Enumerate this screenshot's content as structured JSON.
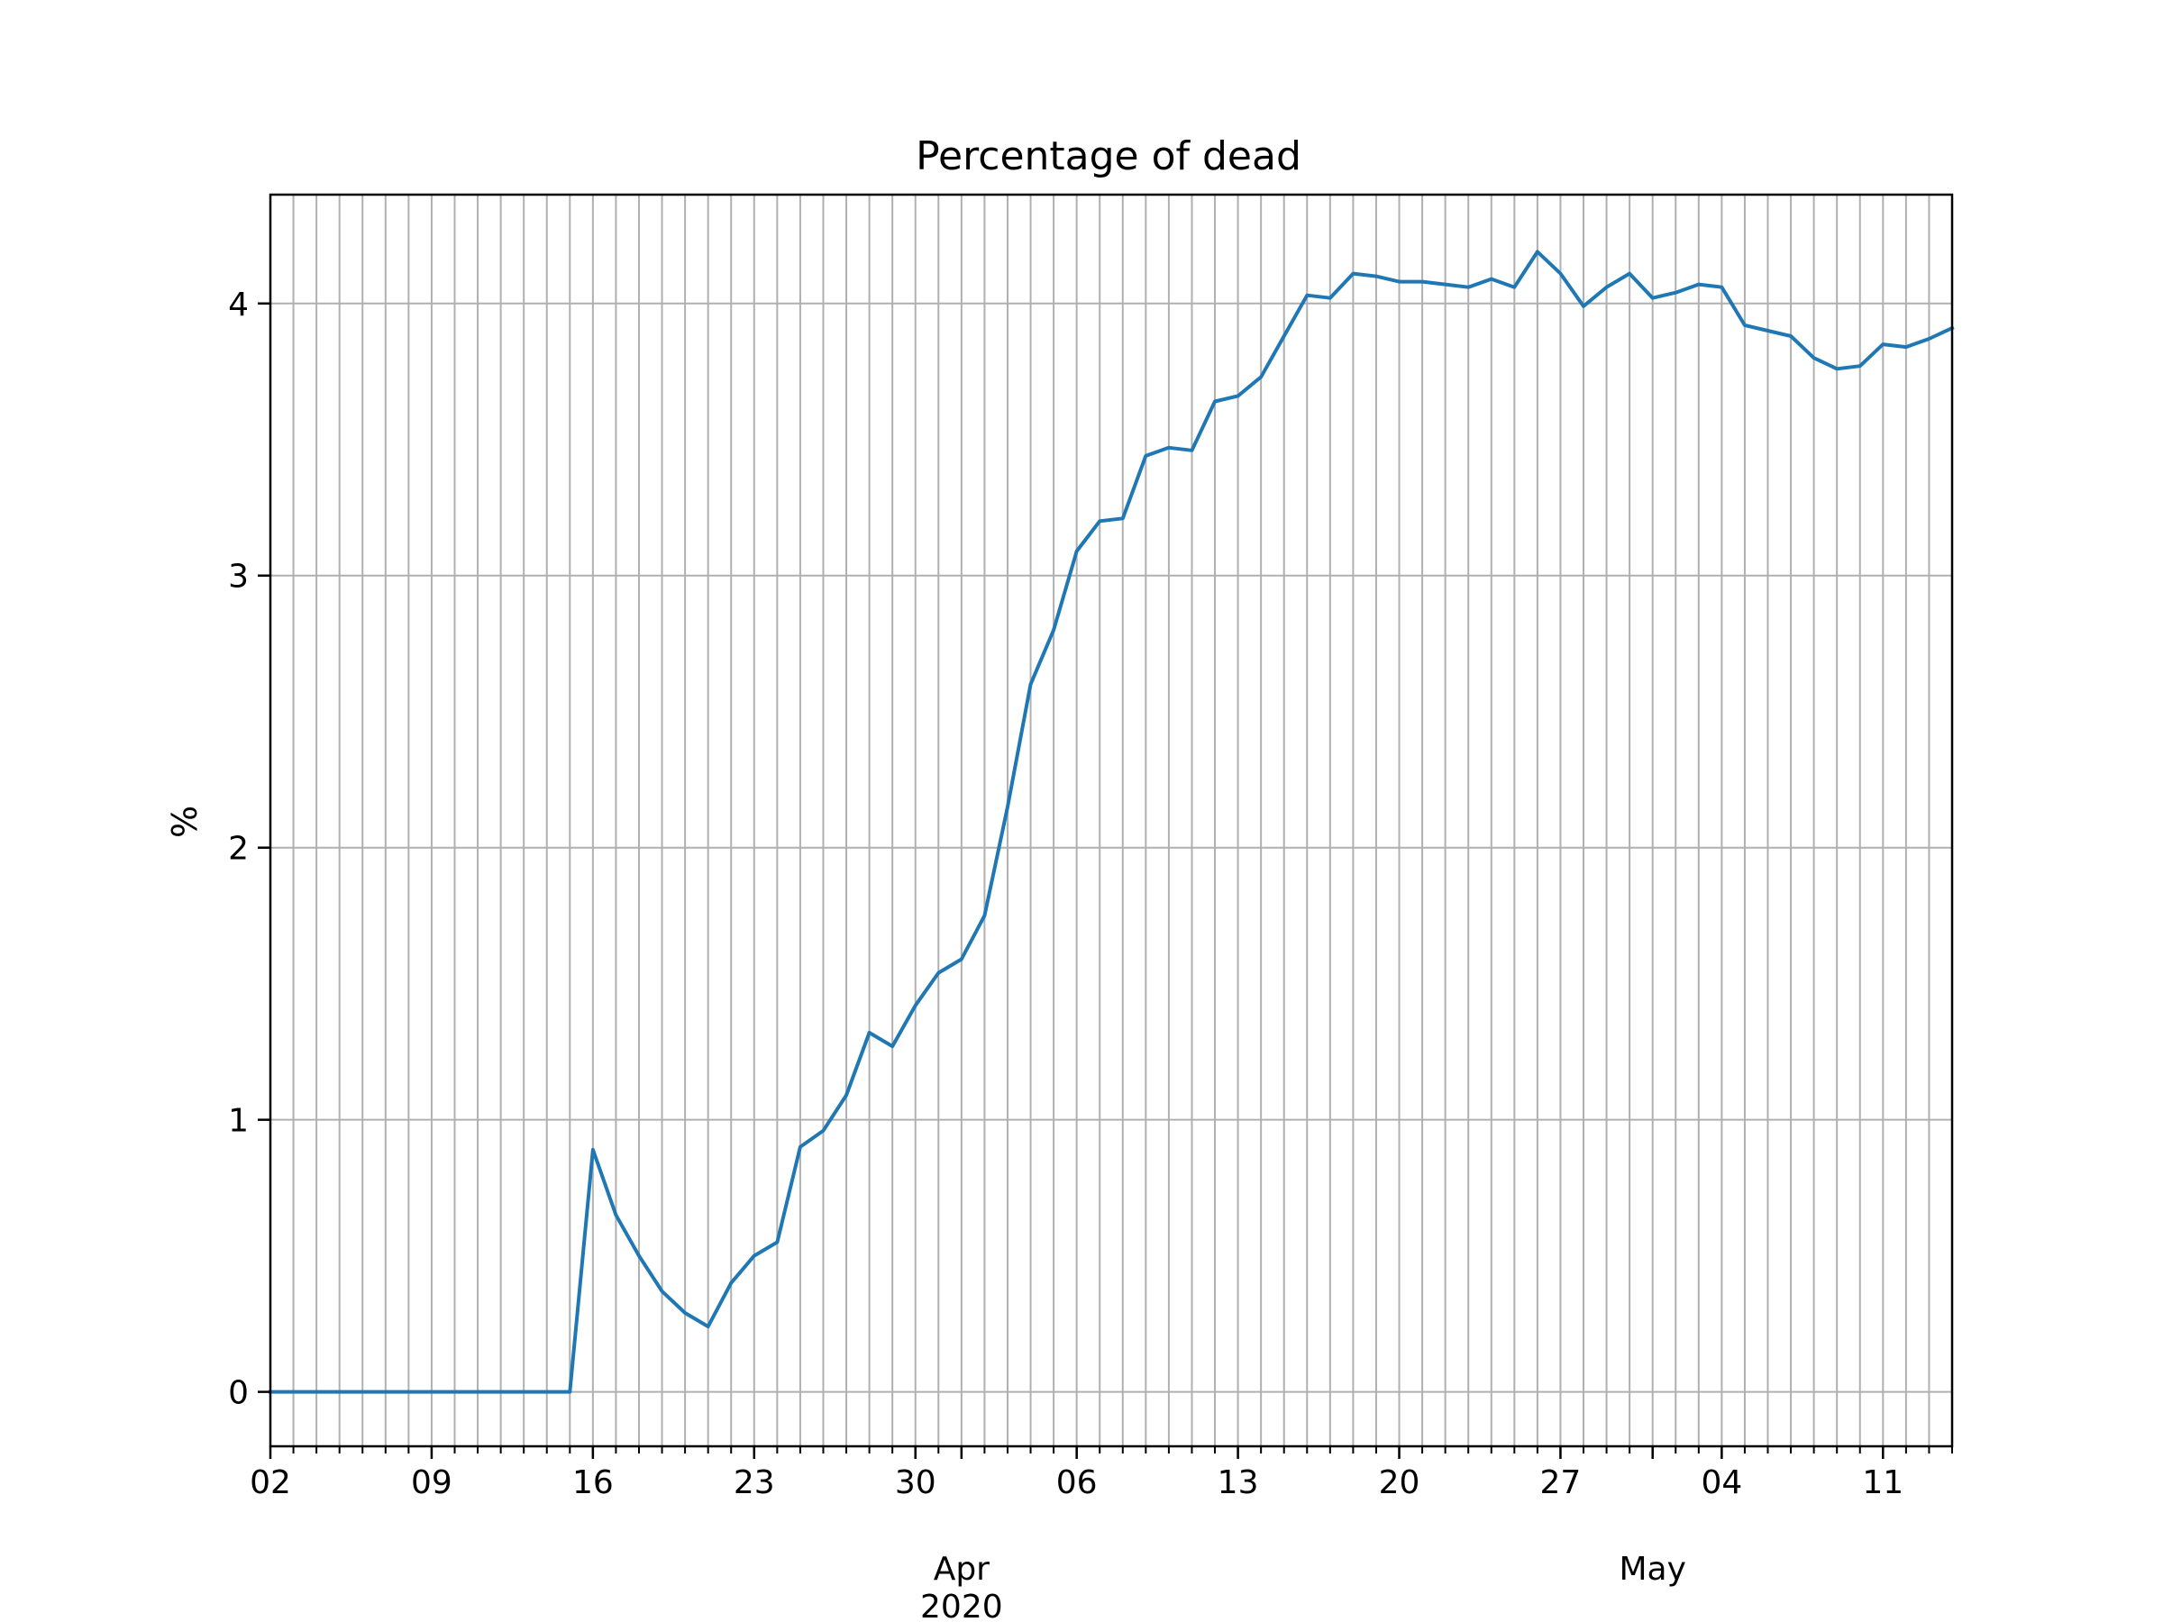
{
  "chart_data": {
    "type": "line",
    "title": "Percentage of dead",
    "xlabel": "",
    "ylabel": "%",
    "x_start": "2020-03-02",
    "x_end": "2020-05-14",
    "ylim": [
      -0.2,
      4.4
    ],
    "yticks": [
      0,
      1,
      2,
      3,
      4
    ],
    "grid": true,
    "x_minor_ticks": "daily",
    "x_major_ticks": [
      {
        "date": "2020-03-02",
        "label": "02"
      },
      {
        "date": "2020-03-09",
        "label": "09"
      },
      {
        "date": "2020-03-16",
        "label": "16"
      },
      {
        "date": "2020-03-23",
        "label": "23"
      },
      {
        "date": "2020-03-30",
        "label": "30"
      },
      {
        "date": "2020-04-06",
        "label": "06"
      },
      {
        "date": "2020-04-13",
        "label": "13"
      },
      {
        "date": "2020-04-20",
        "label": "20"
      },
      {
        "date": "2020-04-27",
        "label": "27"
      },
      {
        "date": "2020-05-04",
        "label": "04"
      },
      {
        "date": "2020-05-11",
        "label": "11"
      }
    ],
    "month_labels": [
      {
        "date": "2020-04-01",
        "label": "Apr",
        "year": "2020"
      },
      {
        "date": "2020-05-01",
        "label": "May",
        "year": ""
      }
    ],
    "line_color": "#1f77b4",
    "series": [
      {
        "points": [
          [
            "2020-03-02",
            0
          ],
          [
            "2020-03-03",
            0
          ],
          [
            "2020-03-04",
            0
          ],
          [
            "2020-03-05",
            0
          ],
          [
            "2020-03-06",
            0
          ],
          [
            "2020-03-07",
            0
          ],
          [
            "2020-03-08",
            0
          ],
          [
            "2020-03-09",
            0
          ],
          [
            "2020-03-10",
            0
          ],
          [
            "2020-03-11",
            0
          ],
          [
            "2020-03-12",
            0
          ],
          [
            "2020-03-13",
            0
          ],
          [
            "2020-03-14",
            0
          ],
          [
            "2020-03-15",
            0
          ],
          [
            "2020-03-16",
            0.89
          ],
          [
            "2020-03-17",
            0.65
          ],
          [
            "2020-03-18",
            0.5
          ],
          [
            "2020-03-19",
            0.37
          ],
          [
            "2020-03-20",
            0.29
          ],
          [
            "2020-03-21",
            0.24
          ],
          [
            "2020-03-22",
            0.4
          ],
          [
            "2020-03-23",
            0.5
          ],
          [
            "2020-03-24",
            0.55
          ],
          [
            "2020-03-25",
            0.9
          ],
          [
            "2020-03-26",
            0.96
          ],
          [
            "2020-03-27",
            1.09
          ],
          [
            "2020-03-28",
            1.32
          ],
          [
            "2020-03-29",
            1.27
          ],
          [
            "2020-03-30",
            1.42
          ],
          [
            "2020-03-31",
            1.54
          ],
          [
            "2020-04-01",
            1.59
          ],
          [
            "2020-04-02",
            1.75
          ],
          [
            "2020-04-03",
            2.15
          ],
          [
            "2020-04-04",
            2.6
          ],
          [
            "2020-04-05",
            2.8
          ],
          [
            "2020-04-06",
            3.09
          ],
          [
            "2020-04-07",
            3.2
          ],
          [
            "2020-04-08",
            3.21
          ],
          [
            "2020-04-09",
            3.44
          ],
          [
            "2020-04-10",
            3.47
          ],
          [
            "2020-04-11",
            3.46
          ],
          [
            "2020-04-12",
            3.64
          ],
          [
            "2020-04-13",
            3.66
          ],
          [
            "2020-04-14",
            3.73
          ],
          [
            "2020-04-15",
            3.88
          ],
          [
            "2020-04-16",
            4.03
          ],
          [
            "2020-04-17",
            4.02
          ],
          [
            "2020-04-18",
            4.11
          ],
          [
            "2020-04-19",
            4.1
          ],
          [
            "2020-04-20",
            4.08
          ],
          [
            "2020-04-21",
            4.08
          ],
          [
            "2020-04-22",
            4.07
          ],
          [
            "2020-04-23",
            4.06
          ],
          [
            "2020-04-24",
            4.09
          ],
          [
            "2020-04-25",
            4.06
          ],
          [
            "2020-04-26",
            4.19
          ],
          [
            "2020-04-27",
            4.11
          ],
          [
            "2020-04-28",
            3.99
          ],
          [
            "2020-04-29",
            4.06
          ],
          [
            "2020-04-30",
            4.11
          ],
          [
            "2020-05-01",
            4.02
          ],
          [
            "2020-05-02",
            4.04
          ],
          [
            "2020-05-03",
            4.07
          ],
          [
            "2020-05-04",
            4.06
          ],
          [
            "2020-05-05",
            3.92
          ],
          [
            "2020-05-06",
            3.9
          ],
          [
            "2020-05-07",
            3.88
          ],
          [
            "2020-05-08",
            3.8
          ],
          [
            "2020-05-09",
            3.76
          ],
          [
            "2020-05-10",
            3.77
          ],
          [
            "2020-05-11",
            3.85
          ],
          [
            "2020-05-12",
            3.84
          ],
          [
            "2020-05-13",
            3.87
          ],
          [
            "2020-05-14",
            3.91
          ]
        ]
      }
    ]
  }
}
